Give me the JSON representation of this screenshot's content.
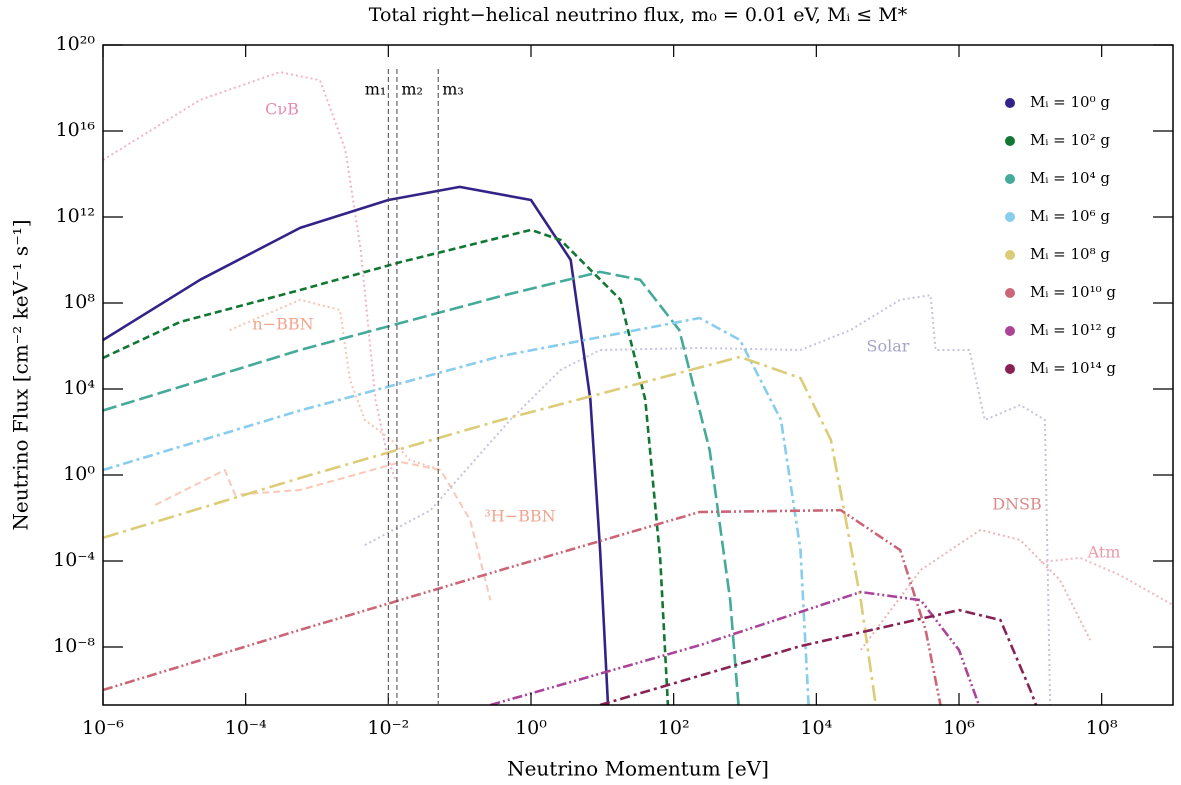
{
  "chart_data": {
    "type": "line",
    "title": "Total right−helical neutrino flux, m₀ = 0.01 eV, Mᵢ ≤ M*",
    "x_label": "Neutrino Momentum [eV]",
    "y_label": "Neutrino Flux [cm⁻² keV⁻¹ s⁻¹]",
    "xscale": "log",
    "yscale": "log",
    "xlim": [
      1e-06,
      1000000000.0
    ],
    "ylim": [
      2e-11,
      1e+20
    ],
    "xticks": [
      {
        "value": 1e-06,
        "label": "10⁻⁶"
      },
      {
        "value": 0.0001,
        "label": "10⁻⁴"
      },
      {
        "value": 0.01,
        "label": "10⁻²"
      },
      {
        "value": 1,
        "label": "10⁰"
      },
      {
        "value": 100,
        "label": "10²"
      },
      {
        "value": 10000.0,
        "label": "10⁴"
      },
      {
        "value": 1000000.0,
        "label": "10⁶"
      },
      {
        "value": 100000000.0,
        "label": "10⁸"
      }
    ],
    "yticks": [
      {
        "value": 1e-08,
        "label": "10⁻⁸"
      },
      {
        "value": 0.0001,
        "label": "10⁻⁴"
      },
      {
        "value": 1,
        "label": "10⁰"
      },
      {
        "value": 10000.0,
        "label": "10⁴"
      },
      {
        "value": 100000000.0,
        "label": "10⁸"
      },
      {
        "value": 1000000000000.0,
        "label": "10¹²"
      },
      {
        "value": 1e+16,
        "label": "10¹⁶"
      },
      {
        "value": 1e+20,
        "label": "10²⁰"
      }
    ],
    "legend": "upper right",
    "mass_lines": [
      {
        "name": "m₁",
        "value": 0.01
      },
      {
        "name": "m₂",
        "value": 0.0132
      },
      {
        "name": "m₃",
        "value": 0.05
      }
    ],
    "series": [
      {
        "name": "Mᵢ = 10⁰ g",
        "color": "#332288",
        "linestyle": "solid",
        "x": [
          1e-06,
          2.3e-05,
          0.00058,
          0.01,
          0.1,
          1,
          3.6,
          6.8,
          9.3,
          12
        ],
        "values": [
          1900000.0,
          1200000000.0,
          310000000000.0,
          6200000000000.0,
          25000000000000.0,
          6200000000000.0,
          10000000000.0,
          3100,
          0.00032,
          2e-11
        ]
      },
      {
        "name": "Mᵢ = 10² g",
        "color": "#117733",
        "linestyle": "dashed",
        "x": [
          1e-06,
          1.2e-05,
          0.00058,
          0.015,
          1,
          2.6,
          18,
          40,
          65,
          83
        ],
        "values": [
          280000.0,
          13000000.0,
          400000000.0,
          8100000000.0,
          250000000000.0,
          85000000000.0,
          140000000.0,
          3100,
          0.00011,
          2e-11
        ]
      },
      {
        "name": "Mᵢ = 10⁴ g",
        "color": "#44aa99",
        "linestyle": "longdash",
        "x": [
          1e-06,
          0.00058,
          0.38,
          9.3,
          34,
          120,
          320,
          620,
          810
        ],
        "values": [
          1000,
          650000.0,
          210000000.0,
          2800000000.0,
          1200000000.0,
          5500000.0,
          14,
          1.5e-06,
          2e-11
        ]
      },
      {
        "name": "Mᵢ = 10⁶ g",
        "color": "#88ccee",
        "linestyle": "dashdot",
        "x": [
          1e-06,
          0.00058,
          0.38,
          230,
          850,
          3200,
          6000,
          7800
        ],
        "values": [
          1.7,
          1000,
          340000.0,
          20000000.0,
          1900000.0,
          360,
          0.00032,
          2e-11
        ]
      },
      {
        "name": "Mᵢ = 10⁸ g",
        "color": "#ddcc77",
        "linestyle": "longdashdot",
        "x": [
          1e-06,
          0.00058,
          0.38,
          850,
          6000,
          16000.0,
          42000.0,
          68000.0
        ],
        "values": [
          0.0012,
          0.72,
          360,
          310000.0,
          32000.0,
          43,
          1.5e-06,
          2e-11
        ]
      },
      {
        "name": "Mᵢ = 10¹⁰ g",
        "color": "#cc6677",
        "linestyle": "dashdotdot",
        "x": [
          1e-06,
          0.00058,
          0.38,
          230,
          22000.0,
          150000.0,
          340000.0,
          550000.0
        ],
        "values": [
          1e-10,
          6.2e-08,
          3.8e-05,
          0.019,
          0.023,
          0.00032,
          6.2e-08,
          2e-11
        ]
      },
      {
        "name": "Mᵢ = 10¹² g",
        "color": "#aa4499",
        "linestyle": "dashdotdot",
        "x": [
          0.27,
          230,
          42000.0,
          290000.0,
          1000000.0,
          1900000.0
        ],
        "values": [
          2e-11,
          1.2e-08,
          3.6e-06,
          1.5e-06,
          7.2e-09,
          2e-11
        ]
      },
      {
        "name": "Mᵢ = 10¹⁴ g",
        "color": "#882255",
        "linestyle": "dashdot",
        "x": [
          9.3,
          6000,
          1000000.0,
          3800000.0,
          10000000.0,
          12000000.0
        ],
        "values": [
          2e-11,
          1.1e-08,
          5.2e-07,
          1.8e-07,
          1e-10,
          2e-11
        ]
      }
    ],
    "background": [
      {
        "name": "CνB",
        "color": "#f0b4c8",
        "label_color": "#e48bb4",
        "linestyle": "dotted",
        "x": [
          1e-06,
          2.3e-05,
          0.0003,
          0.0011,
          0.0025,
          0.0041,
          0.0066,
          0.01,
          0.0126
        ],
        "values": [
          450000000000000.0,
          2.8e+17,
          5.5e+18,
          2.3e+18,
          1300000000000000.0,
          30000000000.0,
          3100,
          5,
          0.59
        ]
      },
      {
        "name": "n−BBN",
        "color": "#f8c4b4",
        "label_color": "#f2a58c",
        "linestyle": "dotted",
        "x": [
          6e-05,
          0.00058,
          0.0021,
          0.0029,
          0.0047,
          0.011,
          0.02,
          0.054
        ],
        "values": [
          5500000.0,
          140000000.0,
          47000000.0,
          26000.0,
          360,
          43,
          5,
          1.7
        ]
      },
      {
        "name": "³H−BBN",
        "color": "#f8c8b8",
        "label_color": "#f2a58c",
        "linestyle": "dashed",
        "x": [
          5.4e-06,
          5.1e-05,
          7.1e-05,
          0.00058,
          0.015,
          0.054,
          0.14,
          0.27
        ],
        "values": [
          0.04,
          1.7,
          0.12,
          0.2,
          4,
          1.7,
          0.0081,
          1.5e-06
        ]
      },
      {
        "name": "Solar",
        "color": "#c4c4dc",
        "label_color": "#a4a4c8",
        "linestyle": "dotted",
        "x": [
          0.0047,
          0.039,
          0.51,
          2.6,
          9.3,
          230,
          6000,
          30000.0,
          150000.0,
          400000.0,
          470000.0,
          1400000.0,
          2300000.0,
          7200000.0,
          16000000.0,
          19000000.0
        ],
        "values": [
          0.00055,
          0.023,
          360,
          76000.0,
          650000.0,
          810000.0,
          650000.0,
          5500000.0,
          140000000.0,
          230000000.0,
          650000.0,
          650000.0,
          360,
          1800,
          360,
          2e-11
        ]
      },
      {
        "name": "DNSB",
        "color": "#ecb4b4",
        "label_color": "#d88c8c",
        "linestyle": "dotted",
        "x": [
          42000.0,
          290000.0,
          2000000.0,
          7200000.0,
          26000000.0,
          69000000.0
        ],
        "values": [
          7.2e-09,
          3.8e-05,
          0.0028,
          0.00095,
          1.3e-05,
          2.1e-08
        ]
      },
      {
        "name": "Atm",
        "color": "#f0b8c0",
        "label_color": "#ec9aaa",
        "linestyle": "dotted",
        "x": [
          14000000.0,
          50000000.0,
          180000000.0,
          1000000000.0
        ],
        "values": [
          8.9e-05,
          0.00014,
          2.2e-05,
          8.9e-07
        ]
      }
    ]
  }
}
